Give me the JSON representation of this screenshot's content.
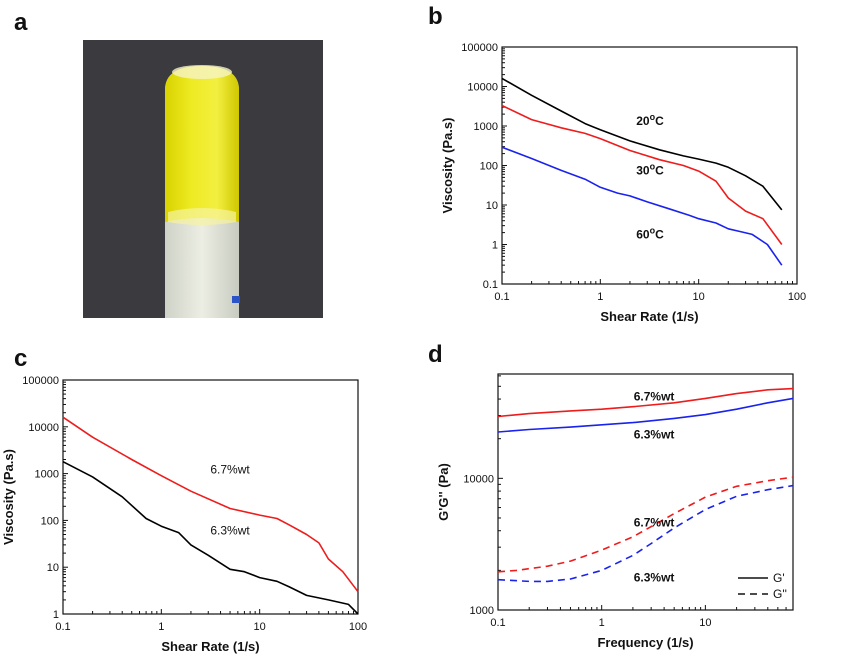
{
  "panels": {
    "a": "a",
    "b": "b",
    "c": "c",
    "d": "d"
  },
  "chart_data": [
    {
      "panel": "b",
      "type": "line",
      "xscale": "log",
      "yscale": "log",
      "xlabel": "Shear Rate (1/s)",
      "ylabel": "Viscosity (Pa.s)",
      "xlim": [
        0.1,
        100
      ],
      "ylim": [
        0.1,
        100000
      ],
      "xticks": [
        "0.1",
        "1",
        "10",
        "100"
      ],
      "yticks": [
        "0.1",
        "1",
        "10",
        "100",
        "1000",
        "10000",
        "100000"
      ],
      "annotations": [
        {
          "text": "20",
          "sup": "o",
          "suffix": "C",
          "x": 3.2,
          "y": 1050
        },
        {
          "text": "30",
          "sup": "o",
          "suffix": "C",
          "x": 3.2,
          "y": 60
        },
        {
          "text": "60",
          "sup": "o",
          "suffix": "C",
          "x": 3.2,
          "y": 1.4
        }
      ],
      "series": [
        {
          "color": "#000000",
          "dash": "solid",
          "x": [
            0.1,
            0.2,
            0.4,
            0.7,
            1,
            2,
            4,
            7,
            10,
            15,
            20,
            30,
            45,
            70
          ],
          "y": [
            16000,
            6000,
            2400,
            1150,
            800,
            420,
            250,
            175,
            145,
            115,
            90,
            55,
            30,
            7.5
          ]
        },
        {
          "color": "#ee1c1c",
          "dash": "solid",
          "x": [
            0.1,
            0.2,
            0.4,
            0.7,
            1,
            2,
            4,
            7,
            10,
            15,
            20,
            30,
            45,
            70
          ],
          "y": [
            3300,
            1450,
            900,
            650,
            480,
            240,
            140,
            100,
            72,
            40,
            15,
            7,
            4.5,
            1.0
          ]
        },
        {
          "color": "#1a22ee",
          "dash": "solid",
          "x": [
            0.1,
            0.2,
            0.4,
            0.7,
            1,
            1.5,
            2,
            3,
            5,
            8,
            10,
            15,
            20,
            25,
            35,
            50,
            70
          ],
          "y": [
            290,
            150,
            75,
            45,
            28,
            20,
            17,
            12,
            8,
            5.5,
            4.5,
            3.5,
            2.5,
            2.2,
            1.8,
            1.0,
            0.3
          ]
        }
      ]
    },
    {
      "panel": "c",
      "type": "line",
      "xscale": "log",
      "yscale": "log",
      "xlabel": "Shear Rate (1/s)",
      "ylabel": "Viscosity (Pa.s)",
      "xlim": [
        0.1,
        100
      ],
      "ylim": [
        1,
        100000
      ],
      "xticks": [
        "0.1",
        "1",
        "10",
        "100"
      ],
      "yticks": [
        "1",
        "10",
        "100",
        "1000",
        "10000",
        "100000"
      ],
      "annotations": [
        {
          "text": "6.7%wt",
          "x": 5,
          "y": 1000
        },
        {
          "text": "6.3%wt",
          "x": 5,
          "y": 50
        }
      ],
      "series": [
        {
          "color": "#ee1c1c",
          "dash": "solid",
          "x": [
            0.1,
            0.2,
            0.5,
            1,
            2,
            5,
            10,
            15,
            20,
            30,
            40,
            50,
            70,
            100
          ],
          "y": [
            16000,
            6000,
            2000,
            900,
            420,
            180,
            130,
            110,
            80,
            50,
            33,
            15,
            8,
            3
          ]
        },
        {
          "color": "#000000",
          "dash": "solid",
          "x": [
            0.1,
            0.2,
            0.4,
            0.7,
            1,
            1.5,
            2,
            3,
            5,
            7,
            10,
            15,
            20,
            30,
            50,
            80,
            100
          ],
          "y": [
            1800,
            850,
            320,
            110,
            75,
            55,
            30,
            18,
            9,
            8,
            6,
            5,
            3.8,
            2.5,
            2.0,
            1.6,
            1.0
          ]
        }
      ]
    },
    {
      "panel": "d",
      "type": "line",
      "xscale": "log",
      "yscale": "log",
      "xlabel": "Frequency (1/s)",
      "ylabel": "G'G'' (Pa)",
      "xlim": [
        0.1,
        70
      ],
      "ylim": [
        1000,
        62000
      ],
      "xticks": [
        "0.1",
        "1",
        "10"
      ],
      "yticks": [
        "1000",
        "10000"
      ],
      "annotations": [
        {
          "text": "6.7%wt",
          "x": 3.2,
          "y": 39000
        },
        {
          "text": "6.3%wt",
          "x": 3.2,
          "y": 20000
        },
        {
          "text": "6.7%wt",
          "x": 3.2,
          "y": 4300
        },
        {
          "text": "6.3%wt",
          "x": 3.2,
          "y": 1650
        }
      ],
      "legend": [
        {
          "label": "G'",
          "dash": "solid"
        },
        {
          "label": "G''",
          "dash": "dashed"
        }
      ],
      "series": [
        {
          "color": "#ee1c1c",
          "dash": "solid",
          "x": [
            0.1,
            0.2,
            0.5,
            1,
            2,
            5,
            10,
            20,
            40,
            70
          ],
          "y": [
            29500,
            31000,
            32500,
            33500,
            35000,
            37500,
            40500,
            44000,
            47000,
            48000
          ]
        },
        {
          "color": "#1a22ee",
          "dash": "solid",
          "x": [
            0.1,
            0.2,
            0.5,
            1,
            2,
            5,
            10,
            20,
            40,
            70
          ],
          "y": [
            22500,
            23500,
            24500,
            25500,
            26500,
            28500,
            30500,
            33500,
            37500,
            40500
          ]
        },
        {
          "color": "#ee1c1c",
          "dash": "dashed",
          "x": [
            0.1,
            0.15,
            0.3,
            0.5,
            1,
            2,
            3,
            5,
            10,
            20,
            40,
            70
          ],
          "y": [
            1950,
            2000,
            2150,
            2350,
            2850,
            3600,
            4300,
            5400,
            7200,
            8700,
            9600,
            10200
          ]
        },
        {
          "color": "#1a22ee",
          "dash": "dashed",
          "x": [
            0.1,
            0.2,
            0.3,
            0.5,
            1,
            2,
            3,
            5,
            10,
            20,
            40,
            70
          ],
          "y": [
            1700,
            1650,
            1650,
            1720,
            2000,
            2600,
            3200,
            4200,
            5800,
            7300,
            8200,
            8800
          ]
        }
      ]
    }
  ]
}
